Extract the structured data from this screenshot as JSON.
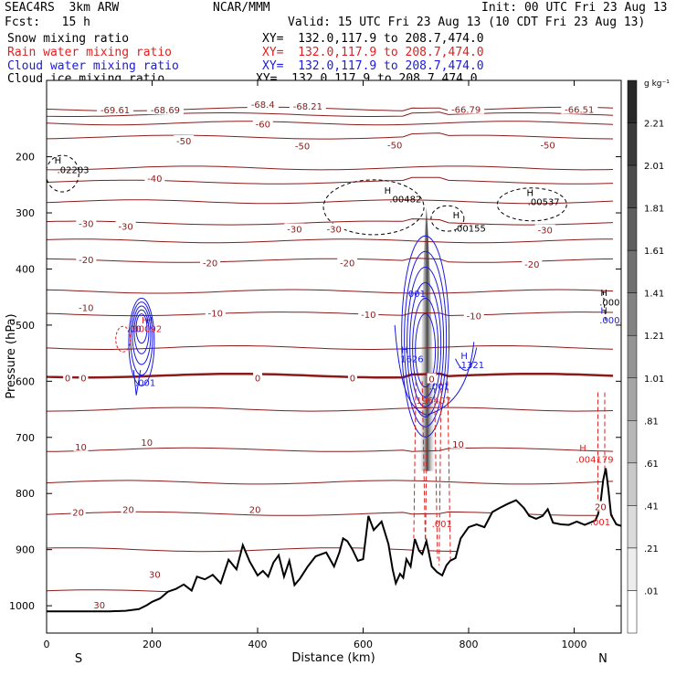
{
  "header": {
    "model": "SEAC4RS  3km ARW",
    "org": "NCAR/MMM",
    "init": "Init: 00 UTC Fri 23 Aug 13",
    "fcst": "Fcst:   15 h",
    "valid": "Valid: 15 UTC Fri 23 Aug 13 (10 CDT Fri 23 Aug 13)",
    "fields": [
      {
        "label": "Snow mixing ratio",
        "xy": "XY=  132.0,117.9 to 208.7,474.0",
        "color": "#000000"
      },
      {
        "label": "Rain water mixing ratio",
        "xy": "XY=  132.0,117.9 to 208.7,474.0",
        "color": "#e02020"
      },
      {
        "label": "Cloud water mixing ratio",
        "xy": "XY=  132.0,117.9 to 208.7,474.0",
        "color": "#1a1ae0"
      },
      {
        "label": "Cloud ice mixing ratio",
        "xy": "XY=  132.0,117.9 to 208.7,474.0",
        "color": "#000000"
      }
    ]
  },
  "chart_data": {
    "type": "heatmap",
    "xlabel": "Distance (km)",
    "ylabel": "Pressure (hPa)",
    "xlim": [
      0,
      1090
    ],
    "ylim": [
      1050,
      100
    ],
    "x_ticks": [
      0,
      200,
      400,
      600,
      800,
      1000
    ],
    "y_ticks": [
      200,
      300,
      400,
      500,
      600,
      700,
      800,
      900,
      1000
    ],
    "x_end_labels": {
      "left": "S",
      "right": "N"
    },
    "colorbar": {
      "unit": "g kg⁻¹",
      "labels": [
        "2.21",
        "2.01",
        "1.81",
        "1.61",
        "1.41",
        "1.21",
        "1.01",
        ".81",
        ".61",
        ".41",
        ".21",
        ".01"
      ]
    },
    "temperature_isotherms": [
      {
        "label": "-70",
        "p": 115
      },
      {
        "label": "-60",
        "p": 125
      },
      {
        "label": "-50",
        "p": 165
      },
      {
        "label": "-40",
        "p": 245
      },
      {
        "label": "-30",
        "p": 318
      },
      {
        "label": "-20",
        "p": 385
      },
      {
        "label": "-10",
        "p": 480
      },
      {
        "label": "0",
        "p": 590
      },
      {
        "label": "10",
        "p": 722
      },
      {
        "label": "20",
        "p": 836
      },
      {
        "label": "30",
        "p": 975
      }
    ],
    "temperature_labels": [
      {
        "text": "-69.61",
        "x": 130,
        "p": 118
      },
      {
        "text": "-68.69",
        "x": 225,
        "p": 118
      },
      {
        "text": "-68.4",
        "x": 410,
        "p": 108
      },
      {
        "text": "-68.21",
        "x": 495,
        "p": 111
      },
      {
        "text": "-66.79",
        "x": 795,
        "p": 117
      },
      {
        "text": "-66.51",
        "x": 1010,
        "p": 117
      },
      {
        "text": "-60",
        "x": 410,
        "p": 143
      },
      {
        "text": "-50",
        "x": 260,
        "p": 173
      },
      {
        "text": "-50",
        "x": 485,
        "p": 182
      },
      {
        "text": "-50",
        "x": 660,
        "p": 180
      },
      {
        "text": "-50",
        "x": 950,
        "p": 180
      },
      {
        "text": "-40",
        "x": 205,
        "p": 240
      },
      {
        "text": "-30",
        "x": 75,
        "p": 320
      },
      {
        "text": "-30",
        "x": 150,
        "p": 325
      },
      {
        "text": "-30",
        "x": 470,
        "p": 330
      },
      {
        "text": "-30",
        "x": 545,
        "p": 330
      },
      {
        "text": "-30",
        "x": 945,
        "p": 332
      },
      {
        "text": "-20",
        "x": 75,
        "p": 385
      },
      {
        "text": "-20",
        "x": 310,
        "p": 390
      },
      {
        "text": "-20",
        "x": 570,
        "p": 390
      },
      {
        "text": "-20",
        "x": 920,
        "p": 393
      },
      {
        "text": "-10",
        "x": 75,
        "p": 470
      },
      {
        "text": "-10",
        "x": 320,
        "p": 480
      },
      {
        "text": "-10",
        "x": 610,
        "p": 482
      },
      {
        "text": "-10",
        "x": 810,
        "p": 485
      },
      {
        "text": "0",
        "x": 40,
        "p": 595
      },
      {
        "text": "0",
        "x": 70,
        "p": 595
      },
      {
        "text": "0",
        "x": 400,
        "p": 595
      },
      {
        "text": "0",
        "x": 580,
        "p": 595
      },
      {
        "text": "0",
        "x": 730,
        "p": 597
      },
      {
        "text": "10",
        "x": 65,
        "p": 718
      },
      {
        "text": "10",
        "x": 190,
        "p": 710
      },
      {
        "text": "10",
        "x": 780,
        "p": 713
      },
      {
        "text": "20",
        "x": 60,
        "p": 835
      },
      {
        "text": "20",
        "x": 155,
        "p": 830
      },
      {
        "text": "20",
        "x": 395,
        "p": 830
      },
      {
        "text": "20",
        "x": 1050,
        "p": 825
      },
      {
        "text": "30",
        "x": 205,
        "p": 945
      },
      {
        "text": "30",
        "x": 100,
        "p": 1000
      }
    ],
    "extrema_labels": [
      {
        "text": "H",
        "x": 15,
        "p": 212,
        "color": "#000000"
      },
      {
        "text": ".02203",
        "x": 20,
        "p": 229,
        "color": "#000000"
      },
      {
        "text": "H",
        "x": 640,
        "p": 266,
        "color": "#000000"
      },
      {
        "text": ".00482",
        "x": 650,
        "p": 281,
        "color": "#000000"
      },
      {
        "text": "H",
        "x": 770,
        "p": 310,
        "color": "#000000"
      },
      {
        "text": ".00155",
        "x": 772,
        "p": 333,
        "color": "#000000"
      },
      {
        "text": "H",
        "x": 910,
        "p": 270,
        "color": "#000000"
      },
      {
        "text": ".00537",
        "x": 912,
        "p": 286,
        "color": "#000000"
      },
      {
        "text": "H",
        "x": 1050,
        "p": 448,
        "color": "#000000"
      },
      {
        "text": ".000",
        "x": 1048,
        "p": 465,
        "color": "#000000"
      },
      {
        "text": "H",
        "x": 180,
        "p": 497,
        "color": "#e02020"
      },
      {
        "text": "H",
        "x": 188,
        "p": 497,
        "color": "#1a1ae0"
      },
      {
        "text": ".00092",
        "x": 158,
        "p": 512,
        "color": "#e02020"
      },
      {
        "text": ".00",
        "x": 152,
        "p": 512,
        "color": "#1a1ae0"
      },
      {
        "text": ".001",
        "x": 168,
        "p": 608,
        "color": "#1a1ae0"
      },
      {
        "text": ".001",
        "x": 680,
        "p": 450,
        "color": "#1a1ae0"
      },
      {
        "text": "H",
        "x": 672,
        "p": 550,
        "color": "#1a1ae0"
      },
      {
        "text": ".1626",
        "x": 665,
        "p": 566,
        "color": "#1a1ae0"
      },
      {
        "text": "H",
        "x": 785,
        "p": 560,
        "color": "#1a1ae0"
      },
      {
        "text": ".1321",
        "x": 780,
        "p": 577,
        "color": "#1a1ae0"
      },
      {
        "text": "H",
        "x": 1050,
        "p": 480,
        "color": "#1a1ae0"
      },
      {
        "text": ".0005",
        "x": 1048,
        "p": 497,
        "color": "#1a1ae0"
      },
      {
        "text": ".001",
        "x": 725,
        "p": 615,
        "color": "#1a1ae0"
      },
      {
        "text": ".196407",
        "x": 695,
        "p": 640,
        "color": "#e02020"
      },
      {
        "text": "H",
        "x": 1010,
        "p": 725,
        "color": "#e02020"
      },
      {
        "text": ".004179",
        "x": 1003,
        "p": 745,
        "color": "#e02020"
      },
      {
        "text": ".001",
        "x": 730,
        "p": 860,
        "color": "#e02020"
      },
      {
        "text": ".001",
        "x": 1030,
        "p": 857,
        "color": "#e02020"
      }
    ],
    "terrain": {
      "x": [
        0,
        40,
        80,
        120,
        150,
        175,
        190,
        200,
        215,
        230,
        245,
        260,
        275,
        285,
        300,
        315,
        330,
        345,
        360,
        372,
        385,
        400,
        410,
        420,
        430,
        440,
        450,
        460,
        470,
        480,
        495,
        510,
        530,
        545,
        555,
        562,
        570,
        580,
        590,
        600,
        610,
        620,
        635,
        648,
        656,
        662,
        670,
        676,
        682,
        690,
        698,
        706,
        712,
        720,
        730,
        740,
        750,
        758,
        765,
        775,
        785,
        800,
        815,
        830,
        845,
        860,
        875,
        890,
        905,
        915,
        928,
        940,
        950,
        960,
        975,
        990,
        1005,
        1020,
        1030,
        1040,
        1045,
        1050,
        1055,
        1060,
        1065,
        1070,
        1080,
        1090
      ],
      "p": [
        1010,
        1010,
        1010,
        1010,
        1009,
        1006,
        999,
        993,
        987,
        975,
        970,
        962,
        973,
        948,
        953,
        945,
        960,
        918,
        935,
        892,
        921,
        946,
        938,
        948,
        923,
        910,
        948,
        920,
        963,
        952,
        930,
        912,
        905,
        930,
        905,
        880,
        885,
        900,
        920,
        917,
        840,
        865,
        850,
        890,
        935,
        960,
        943,
        950,
        917,
        930,
        881,
        902,
        908,
        885,
        930,
        940,
        946,
        928,
        920,
        915,
        880,
        860,
        855,
        860,
        833,
        825,
        818,
        812,
        826,
        840,
        845,
        840,
        828,
        852,
        855,
        856,
        850,
        856,
        852,
        848,
        838,
        817,
        776,
        755,
        793,
        838,
        855,
        858
      ]
    }
  }
}
